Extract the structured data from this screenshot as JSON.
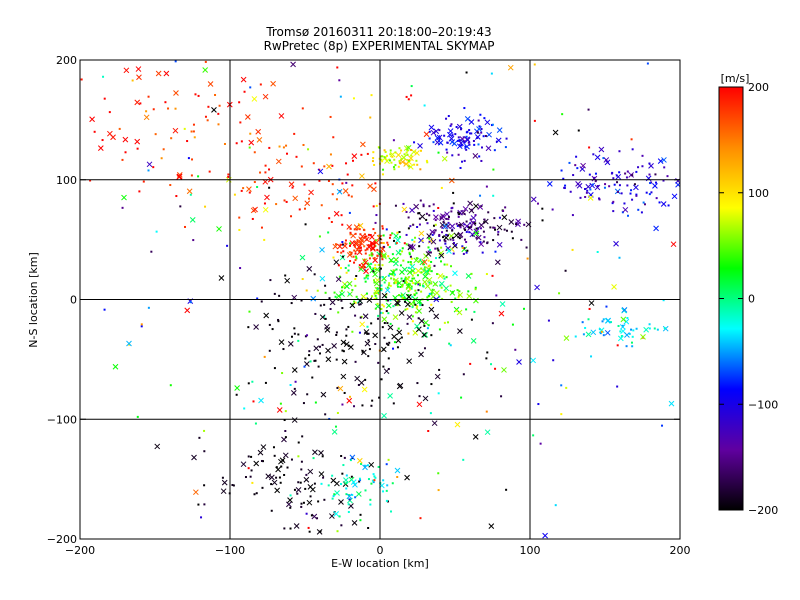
{
  "title_line1": "Tromsø 20160311 20:18:00–20:19:43",
  "title_line2": "RwPretec (8p) EXPERIMENTAL SKYMAP",
  "chart_data": {
    "type": "scatter",
    "xlabel": "E-W location [km]",
    "ylabel": "N-S location [km]",
    "xlim": [
      -200,
      200
    ],
    "ylim": [
      -200,
      200
    ],
    "x_ticks": [
      -200,
      -100,
      0,
      100,
      200
    ],
    "y_ticks": [
      -200,
      -100,
      0,
      100,
      200
    ],
    "x_tick_labels": [
      "−200",
      "−100",
      "0",
      "100",
      "200"
    ],
    "y_tick_labels": [
      "−200",
      "−100",
      "0",
      "100",
      "200"
    ],
    "grid": true,
    "grid_lines_x": [
      -100,
      0,
      100
    ],
    "grid_lines_y": [
      -100,
      0,
      100
    ],
    "markers": [
      "x",
      "dot"
    ],
    "colorbar": {
      "label": "[m/s]",
      "range": [
        -200,
        200
      ],
      "ticks": [
        200,
        100,
        0,
        -100,
        -200
      ],
      "tick_labels": [
        "200",
        "100",
        "0",
        "−100",
        "−200"
      ],
      "colors": [
        "#ff0000",
        "#ff8c00",
        "#ffff00",
        "#00ff00",
        "#00ffff",
        "#0000ff",
        "#6000a0",
        "#000000"
      ]
    },
    "clusters": [
      {
        "x": 15,
        "y": 15,
        "sx": 22,
        "sy": 18,
        "v": 40,
        "vs": 30,
        "n": 360
      },
      {
        "x": -10,
        "y": 45,
        "sx": 10,
        "sy": 9,
        "v": 185,
        "vs": 15,
        "n": 110
      },
      {
        "x": 50,
        "y": 58,
        "sx": 20,
        "sy": 12,
        "v": -160,
        "vs": 35,
        "n": 200
      },
      {
        "x": 55,
        "y": 135,
        "sx": 14,
        "sy": 8,
        "v": -100,
        "vs": 20,
        "n": 95
      },
      {
        "x": 15,
        "y": 118,
        "sx": 12,
        "sy": 7,
        "v": 80,
        "vs": 25,
        "n": 70
      },
      {
        "x": -15,
        "y": -30,
        "sx": 35,
        "sy": 30,
        "v": -195,
        "vs": 10,
        "n": 180
      },
      {
        "x": -60,
        "y": -155,
        "sx": 28,
        "sy": 22,
        "v": -195,
        "vs": 10,
        "n": 110
      },
      {
        "x": -15,
        "y": -150,
        "sx": 12,
        "sy": 12,
        "v": -20,
        "vs": 20,
        "n": 60
      },
      {
        "x": 160,
        "y": 95,
        "sx": 25,
        "sy": 15,
        "v": -110,
        "vs": 25,
        "n": 120
      },
      {
        "x": 160,
        "y": -25,
        "sx": 15,
        "sy": 8,
        "v": -30,
        "vs": 20,
        "n": 45
      },
      {
        "x": -130,
        "y": 150,
        "sx": 40,
        "sy": 30,
        "v": 180,
        "vs": 30,
        "n": 90
      },
      {
        "x": -50,
        "y": 100,
        "sx": 25,
        "sy": 20,
        "v": 185,
        "vs": 20,
        "n": 70
      },
      {
        "x": 0,
        "y": 0,
        "sx": 110,
        "sy": 110,
        "v": 0,
        "vs": 140,
        "n": 300
      }
    ]
  }
}
